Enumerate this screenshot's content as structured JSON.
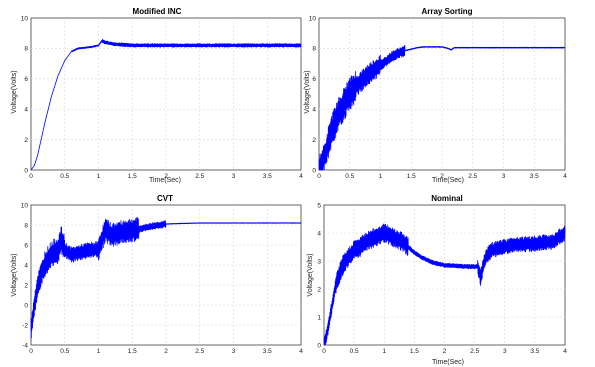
{
  "chart_data": [
    {
      "type": "line",
      "title": "Modified INC",
      "xlabel": "Time(Sec)",
      "ylabel": "Voltage(Volts)",
      "xlim": [
        0,
        4
      ],
      "ylim": [
        0,
        10
      ],
      "xticks": [
        "0",
        "0.5",
        "1",
        "1.5",
        "2",
        "2.5",
        "3",
        "3.5",
        "4"
      ],
      "yticks": [
        "0",
        "2",
        "4",
        "6",
        "8",
        "10"
      ],
      "grid": true,
      "color": "#0000ff",
      "series": [
        {
          "x": [
            0,
            0.05,
            0.1,
            0.15,
            0.2,
            0.3,
            0.4,
            0.5,
            0.6,
            0.7,
            0.8,
            0.9,
            1.0,
            1.05,
            1.1,
            1.2,
            1.5,
            2.0,
            2.5,
            3.0,
            3.5,
            4.0
          ],
          "y": [
            0,
            0.3,
            1.0,
            2.0,
            3.0,
            4.8,
            6.2,
            7.2,
            7.8,
            8.0,
            8.05,
            8.1,
            8.2,
            8.5,
            8.4,
            8.3,
            8.2,
            8.2,
            8.2,
            8.2,
            8.2,
            8.2
          ]
        }
      ]
    },
    {
      "type": "line",
      "title": "Array Sorting",
      "xlabel": "Time(Sec)",
      "ylabel": "Voltage(Volts)",
      "xlim": [
        0,
        4
      ],
      "ylim": [
        0,
        10
      ],
      "xticks": [
        "0",
        "0.5",
        "1",
        "1.5",
        "2",
        "2.5",
        "3",
        "3.5",
        "4"
      ],
      "yticks": [
        "0",
        "2",
        "4",
        "6",
        "8",
        "10"
      ],
      "grid": true,
      "color": "#0000ff",
      "series": [
        {
          "x": [
            0,
            0.05,
            0.1,
            0.2,
            0.3,
            0.4,
            0.5,
            0.6,
            0.7,
            0.8,
            0.9,
            1.0,
            1.1,
            1.2,
            1.3,
            1.4,
            1.5,
            1.6,
            1.7,
            1.8,
            2.0,
            2.1,
            2.15,
            2.2,
            2.5,
            3.0,
            3.5,
            4.0
          ],
          "y": [
            0,
            0.5,
            1.0,
            2.5,
            3.5,
            4.3,
            5.0,
            5.5,
            5.9,
            6.3,
            6.6,
            6.9,
            7.2,
            7.5,
            7.7,
            7.85,
            7.95,
            8.05,
            8.1,
            8.1,
            8.1,
            8.0,
            7.9,
            8.05,
            8.05,
            8.05,
            8.05,
            8.05
          ]
        }
      ]
    },
    {
      "type": "line",
      "title": "CVT",
      "xlabel": "",
      "ylabel": "Voltage(Volts)",
      "xlim": [
        0,
        4
      ],
      "ylim": [
        -4,
        10
      ],
      "xticks": [
        "0",
        "0.5",
        "1",
        "1.5",
        "2",
        "2.5",
        "3",
        "3.5",
        "4"
      ],
      "yticks": [
        "-4",
        "-2",
        "0",
        "2",
        "4",
        "6",
        "8",
        "10"
      ],
      "grid": true,
      "color": "#0000ff",
      "series": [
        {
          "x": [
            0,
            0.05,
            0.1,
            0.2,
            0.3,
            0.4,
            0.45,
            0.5,
            0.6,
            0.7,
            0.8,
            0.9,
            1.0,
            1.05,
            1.1,
            1.2,
            1.3,
            1.4,
            1.5,
            1.6,
            1.8,
            2.0,
            2.2,
            2.5,
            3.0,
            3.5,
            4.0
          ],
          "y": [
            -2.5,
            0,
            2.0,
            4.0,
            5.0,
            5.5,
            6.5,
            5.5,
            5.0,
            5.2,
            5.4,
            5.5,
            5.6,
            6.5,
            7.5,
            7.0,
            7.2,
            7.4,
            7.5,
            7.6,
            7.9,
            8.1,
            8.15,
            8.2,
            8.2,
            8.2,
            8.2
          ]
        }
      ]
    },
    {
      "type": "line",
      "title": "Nominal",
      "xlabel": "Time(Sec)",
      "ylabel": "Voltage(Volts)",
      "xlim": [
        0,
        4
      ],
      "ylim": [
        0,
        5
      ],
      "xticks": [
        "0",
        "0.5",
        "1",
        "1.5",
        "2",
        "2.5",
        "3",
        "3.5",
        "4"
      ],
      "yticks": [
        "0",
        "1",
        "2",
        "3",
        "4",
        "5"
      ],
      "grid": true,
      "color": "#0000ff",
      "series": [
        {
          "x": [
            0,
            0.05,
            0.1,
            0.15,
            0.2,
            0.3,
            0.4,
            0.5,
            0.6,
            0.7,
            0.8,
            0.9,
            1.0,
            1.1,
            1.2,
            1.3,
            1.4,
            1.5,
            1.6,
            1.7,
            1.8,
            2.0,
            2.2,
            2.4,
            2.55,
            2.6,
            2.65,
            2.7,
            2.8,
            3.0,
            3.2,
            3.4,
            3.6,
            3.8,
            4.0
          ],
          "y": [
            0,
            0.4,
            1.0,
            1.6,
            2.2,
            2.8,
            3.1,
            3.4,
            3.5,
            3.7,
            3.8,
            3.9,
            4.0,
            3.9,
            3.8,
            3.7,
            3.5,
            3.3,
            3.15,
            3.05,
            2.95,
            2.85,
            2.82,
            2.8,
            2.8,
            2.4,
            2.9,
            3.2,
            3.4,
            3.5,
            3.6,
            3.6,
            3.65,
            3.7,
            4.0
          ]
        }
      ]
    }
  ]
}
